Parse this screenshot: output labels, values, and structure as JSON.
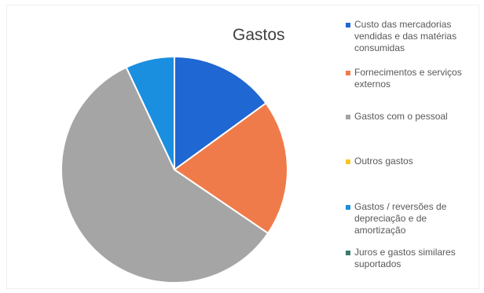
{
  "chart_data": {
    "type": "pie",
    "title": "Gastos",
    "series": [
      {
        "name": "Custo das mercadorias vendidas e das matérias consumidas",
        "value": 15,
        "color": "#1f67d2"
      },
      {
        "name": "Fornecimentos e serviços externos",
        "value": 19.5,
        "color": "#f07b4a"
      },
      {
        "name": "Gastos com o pessoal",
        "value": 58.5,
        "color": "#a5a5a5"
      },
      {
        "name": "Outros gastos",
        "value": 0,
        "color": "#f2c72a"
      },
      {
        "name": "Gastos / reversões de depreciação e de amortização",
        "value": 7,
        "color": "#1a8fe0"
      },
      {
        "name": "Juros e gastos similares suportados",
        "value": 0,
        "color": "#3a7a6a"
      }
    ],
    "legend_position": "right"
  }
}
